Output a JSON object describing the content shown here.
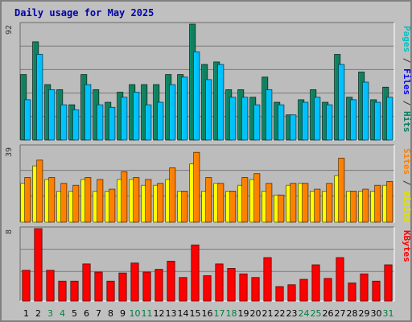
{
  "chart_data": {
    "type": "bar",
    "title": "Daily usage for May 2025",
    "categories": [
      "1",
      "2",
      "3",
      "4",
      "5",
      "6",
      "7",
      "8",
      "9",
      "10",
      "11",
      "12",
      "13",
      "14",
      "15",
      "16",
      "17",
      "18",
      "19",
      "20",
      "21",
      "22",
      "23",
      "24",
      "25",
      "26",
      "27",
      "28",
      "29",
      "30",
      "31"
    ],
    "weekend_days": [
      "3",
      "4",
      "10",
      "11",
      "17",
      "18",
      "24",
      "25",
      "31"
    ],
    "grid": true,
    "panels": [
      {
        "name": "hits-files-pages",
        "ymax_label": "92",
        "ymax": 92,
        "side_labels": [
          {
            "text": "Pages",
            "color": "#00c0c0"
          },
          {
            "text": " / ",
            "color": "#333333"
          },
          {
            "text": "Files",
            "color": "#0000ff"
          },
          {
            "text": " / ",
            "color": "#333333"
          },
          {
            "text": "Hits",
            "color": "#008060"
          }
        ],
        "series": [
          {
            "name": "Hits",
            "color": "#108060",
            "values": [
              52,
              78,
              44,
              40,
              28,
              52,
              40,
              30,
              38,
              44,
              44,
              44,
              52,
              52,
              92,
              60,
              62,
              40,
              40,
              34,
              50,
              30,
              20,
              32,
              40,
              30,
              68,
              34,
              54,
              32,
              42
            ]
          },
          {
            "name": "Files",
            "color": "#00c0ff",
            "values": [
              32,
              68,
              40,
              28,
              24,
              44,
              28,
              26,
              34,
              38,
              28,
              30,
              44,
              50,
              70,
              48,
              60,
              34,
              34,
              28,
              40,
              28,
              20,
              30,
              34,
              28,
              60,
              32,
              46,
              30,
              34
            ]
          }
        ]
      },
      {
        "name": "visits-sites",
        "ymax_label": "39",
        "ymax": 39,
        "side_labels": [
          {
            "text": "Sites",
            "color": "#ff8000"
          },
          {
            "text": " / ",
            "color": "#333333"
          },
          {
            "text": "Visits",
            "color": "#e0e000"
          }
        ],
        "series": [
          {
            "name": "Visits",
            "color": "#ffff00",
            "values": [
              20,
              29,
              22,
              16,
              16,
              22,
              16,
              16,
              22,
              22,
              19,
              19,
              22,
              16,
              30,
              16,
              20,
              16,
              19,
              22,
              16,
              14,
              19,
              20,
              16,
              16,
              24,
              16,
              16,
              16,
              19
            ]
          },
          {
            "name": "Sites",
            "color": "#ff8000",
            "values": [
              23,
              32,
              23,
              20,
              19,
              23,
              22,
              17,
              26,
              23,
              22,
              20,
              28,
              16,
              36,
              23,
              20,
              16,
              23,
              25,
              20,
              14,
              20,
              20,
              17,
              20,
              33,
              16,
              17,
              19,
              21
            ]
          }
        ]
      },
      {
        "name": "kbytes",
        "ymax_label": "8",
        "ymax": 8,
        "side_labels": [
          {
            "text": "KBytes",
            "color": "#ff0000"
          }
        ],
        "series": [
          {
            "name": "KBytes",
            "color": "#ff0000",
            "values": [
              3.4,
              8.0,
              3.4,
              2.2,
              2.2,
              4.1,
              3.2,
              2.2,
              3.1,
              4.2,
              3.2,
              3.5,
              4.4,
              2.6,
              6.2,
              2.8,
              4.1,
              3.6,
              3.0,
              2.6,
              4.8,
              1.6,
              1.8,
              2.4,
              4.0,
              2.5,
              4.8,
              2.0,
              3.0,
              2.2,
              4.0
            ]
          }
        ]
      }
    ]
  }
}
